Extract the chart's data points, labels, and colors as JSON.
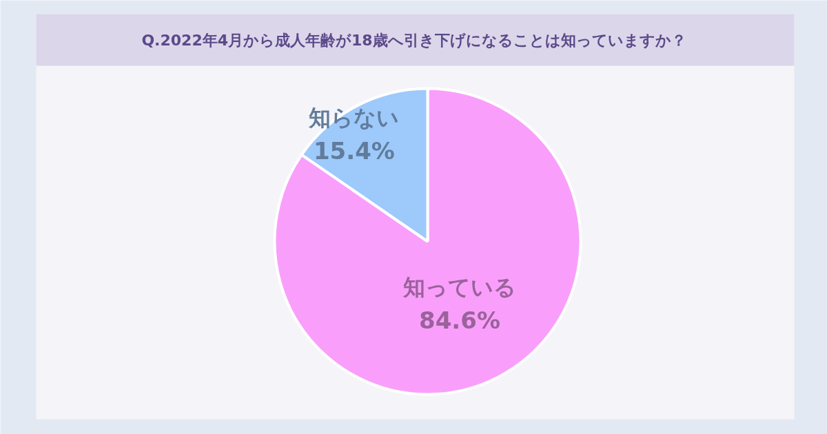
{
  "chart_data": {
    "type": "pie",
    "title": "Q.2022年4月から成人年齢が18歳へ引き下げになることは知っていますか？",
    "categories": [
      "知っている",
      "知らない"
    ],
    "values": [
      84.6,
      15.4
    ],
    "colors": [
      "#f99ffb",
      "#9ec9fb"
    ],
    "value_labels": [
      "84.6%",
      "15.4%"
    ]
  }
}
